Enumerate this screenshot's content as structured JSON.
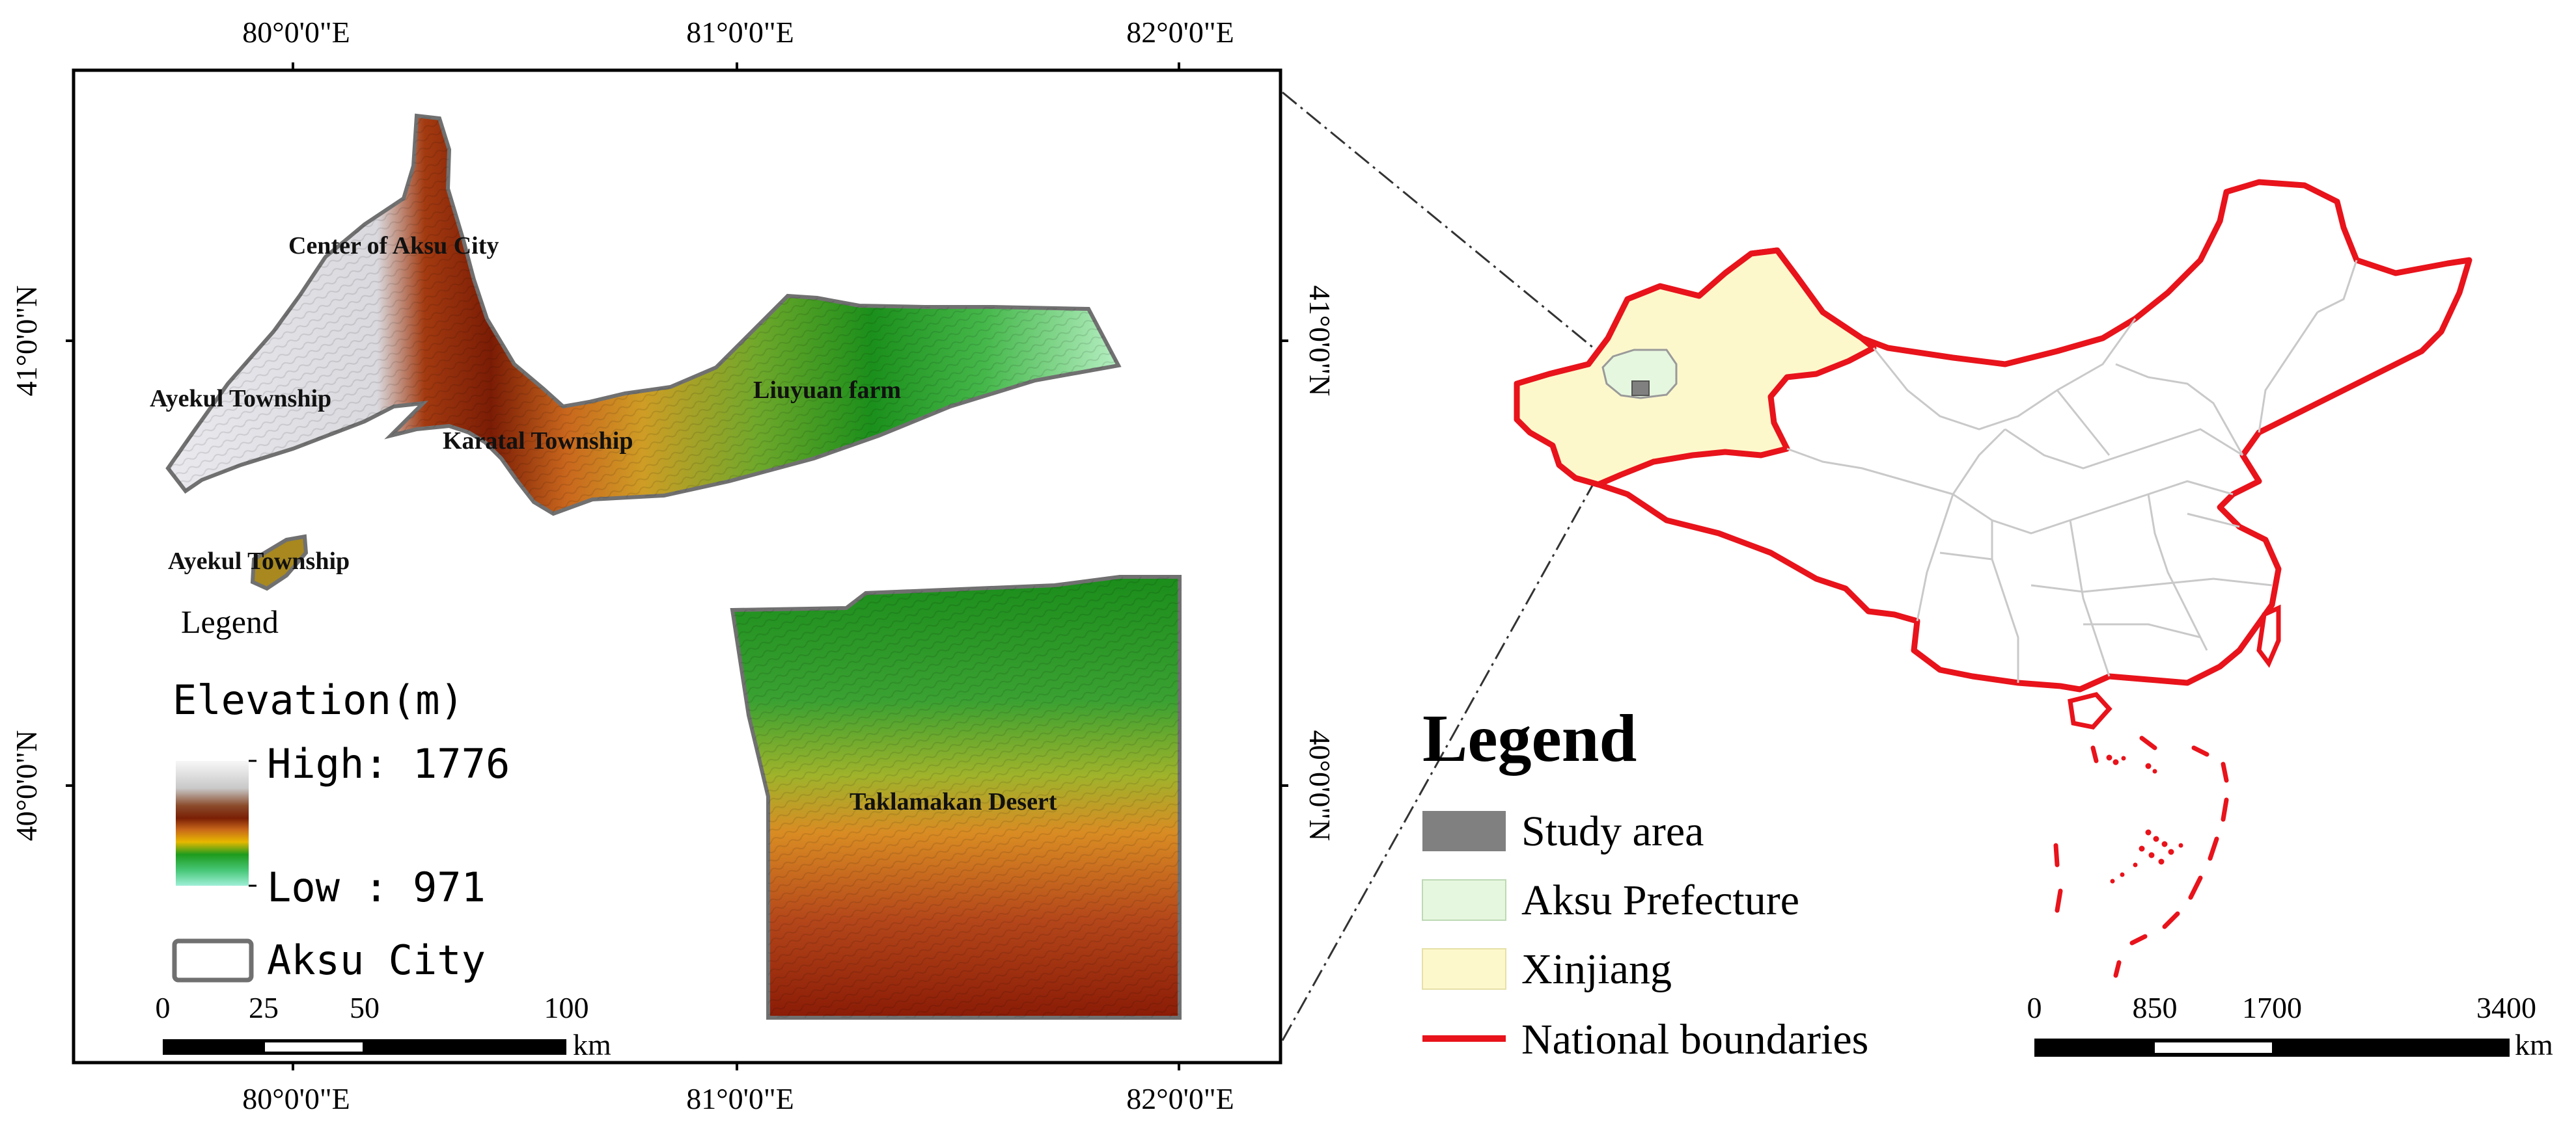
{
  "left_map": {
    "lon_labels": [
      "80°0'0\"E",
      "81°0'0\"E",
      "82°0'0\"E"
    ],
    "lat_labels": [
      "41°0'0\"N",
      "40°0'0\"N"
    ],
    "place_labels": {
      "center_aksu": "Center of Aksu City",
      "ayekul_1": "Ayekul Township",
      "karatal": "Karatal Township",
      "liuyuan": "Liuyuan farm",
      "ayekul_2": "Ayekul Township",
      "taklamakan": "Taklamakan Desert"
    },
    "legend": {
      "title": "Legend",
      "elevation_title": "Elevation(m)",
      "high_label": "High: 1776",
      "low_label": "Low : 971",
      "aksu_city_label": "Aksu City"
    },
    "scalebar": {
      "ticks": [
        "0",
        "25",
        "50",
        "100"
      ],
      "unit": "km"
    }
  },
  "right_map": {
    "legend": {
      "title": "Legend",
      "items": [
        {
          "label": "Study area",
          "color": "#808080"
        },
        {
          "label": "Aksu Prefecture",
          "color": "#e6f7df"
        },
        {
          "label": "Xinjiang",
          "color": "#fdf8cc"
        },
        {
          "label": "National boundaries",
          "color": "#e8131b"
        }
      ]
    },
    "scalebar": {
      "ticks": [
        "0",
        "850",
        "1700",
        "3400"
      ],
      "unit": "km"
    }
  },
  "colors": {
    "national_boundary": "#e8131b",
    "xinjiang_fill": "#fdf8cc",
    "aksu_fill": "#e6f7df",
    "study_area": "#808080",
    "frame": "#000000"
  }
}
